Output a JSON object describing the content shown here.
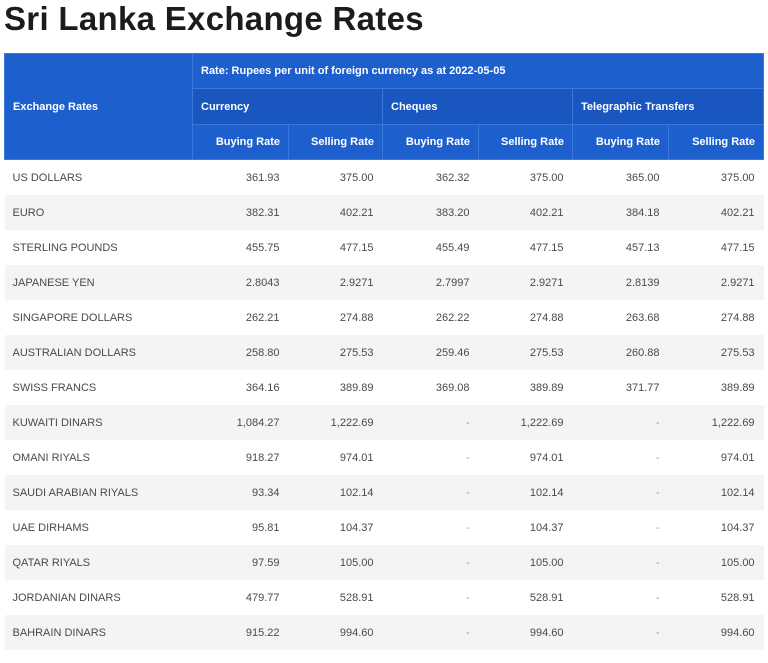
{
  "title": "Sri Lanka Exchange Rates",
  "table": {
    "corner_label": "Exchange Rates",
    "rate_note": "Rate: Rupees per unit of foreign currency as at 2022-05-05",
    "groups": [
      "Currency",
      "Cheques",
      "Telegraphic Transfers"
    ],
    "sub_headers": [
      "Buying Rate",
      "Selling Rate",
      "Buying Rate",
      "Selling Rate",
      "Buying Rate",
      "Selling Rate"
    ],
    "rows": [
      {
        "name": "US DOLLARS",
        "values": [
          "361.93",
          "375.00",
          "362.32",
          "375.00",
          "365.00",
          "375.00"
        ]
      },
      {
        "name": "EURO",
        "values": [
          "382.31",
          "402.21",
          "383.20",
          "402.21",
          "384.18",
          "402.21"
        ]
      },
      {
        "name": "STERLING POUNDS",
        "values": [
          "455.75",
          "477.15",
          "455.49",
          "477.15",
          "457.13",
          "477.15"
        ]
      },
      {
        "name": "JAPANESE YEN",
        "values": [
          "2.8043",
          "2.9271",
          "2.7997",
          "2.9271",
          "2.8139",
          "2.9271"
        ]
      },
      {
        "name": "SINGAPORE DOLLARS",
        "values": [
          "262.21",
          "274.88",
          "262.22",
          "274.88",
          "263.68",
          "274.88"
        ]
      },
      {
        "name": "AUSTRALIAN DOLLARS",
        "values": [
          "258.80",
          "275.53",
          "259.46",
          "275.53",
          "260.88",
          "275.53"
        ]
      },
      {
        "name": "SWISS FRANCS",
        "values": [
          "364.16",
          "389.89",
          "369.08",
          "389.89",
          "371.77",
          "389.89"
        ]
      },
      {
        "name": "KUWAITI DINARS",
        "values": [
          "1,084.27",
          "1,222.69",
          "-",
          "1,222.69",
          "-",
          "1,222.69"
        ]
      },
      {
        "name": "OMANI RIYALS",
        "values": [
          "918.27",
          "974.01",
          "-",
          "974.01",
          "-",
          "974.01"
        ]
      },
      {
        "name": "SAUDI ARABIAN RIYALS",
        "values": [
          "93.34",
          "102.14",
          "-",
          "102.14",
          "-",
          "102.14"
        ]
      },
      {
        "name": "UAE DIRHAMS",
        "values": [
          "95.81",
          "104.37",
          "-",
          "104.37",
          "-",
          "104.37"
        ]
      },
      {
        "name": "QATAR RIYALS",
        "values": [
          "97.59",
          "105.00",
          "-",
          "105.00",
          "-",
          "105.00"
        ]
      },
      {
        "name": "JORDANIAN DINARS",
        "values": [
          "479.77",
          "528.91",
          "-",
          "528.91",
          "-",
          "528.91"
        ]
      },
      {
        "name": "BAHRAIN DINARS",
        "values": [
          "915.22",
          "994.60",
          "-",
          "994.60",
          "-",
          "994.60"
        ]
      }
    ]
  },
  "colors": {
    "header_blue": "#1e5fce",
    "row_stripe": "#f3f4f6"
  }
}
